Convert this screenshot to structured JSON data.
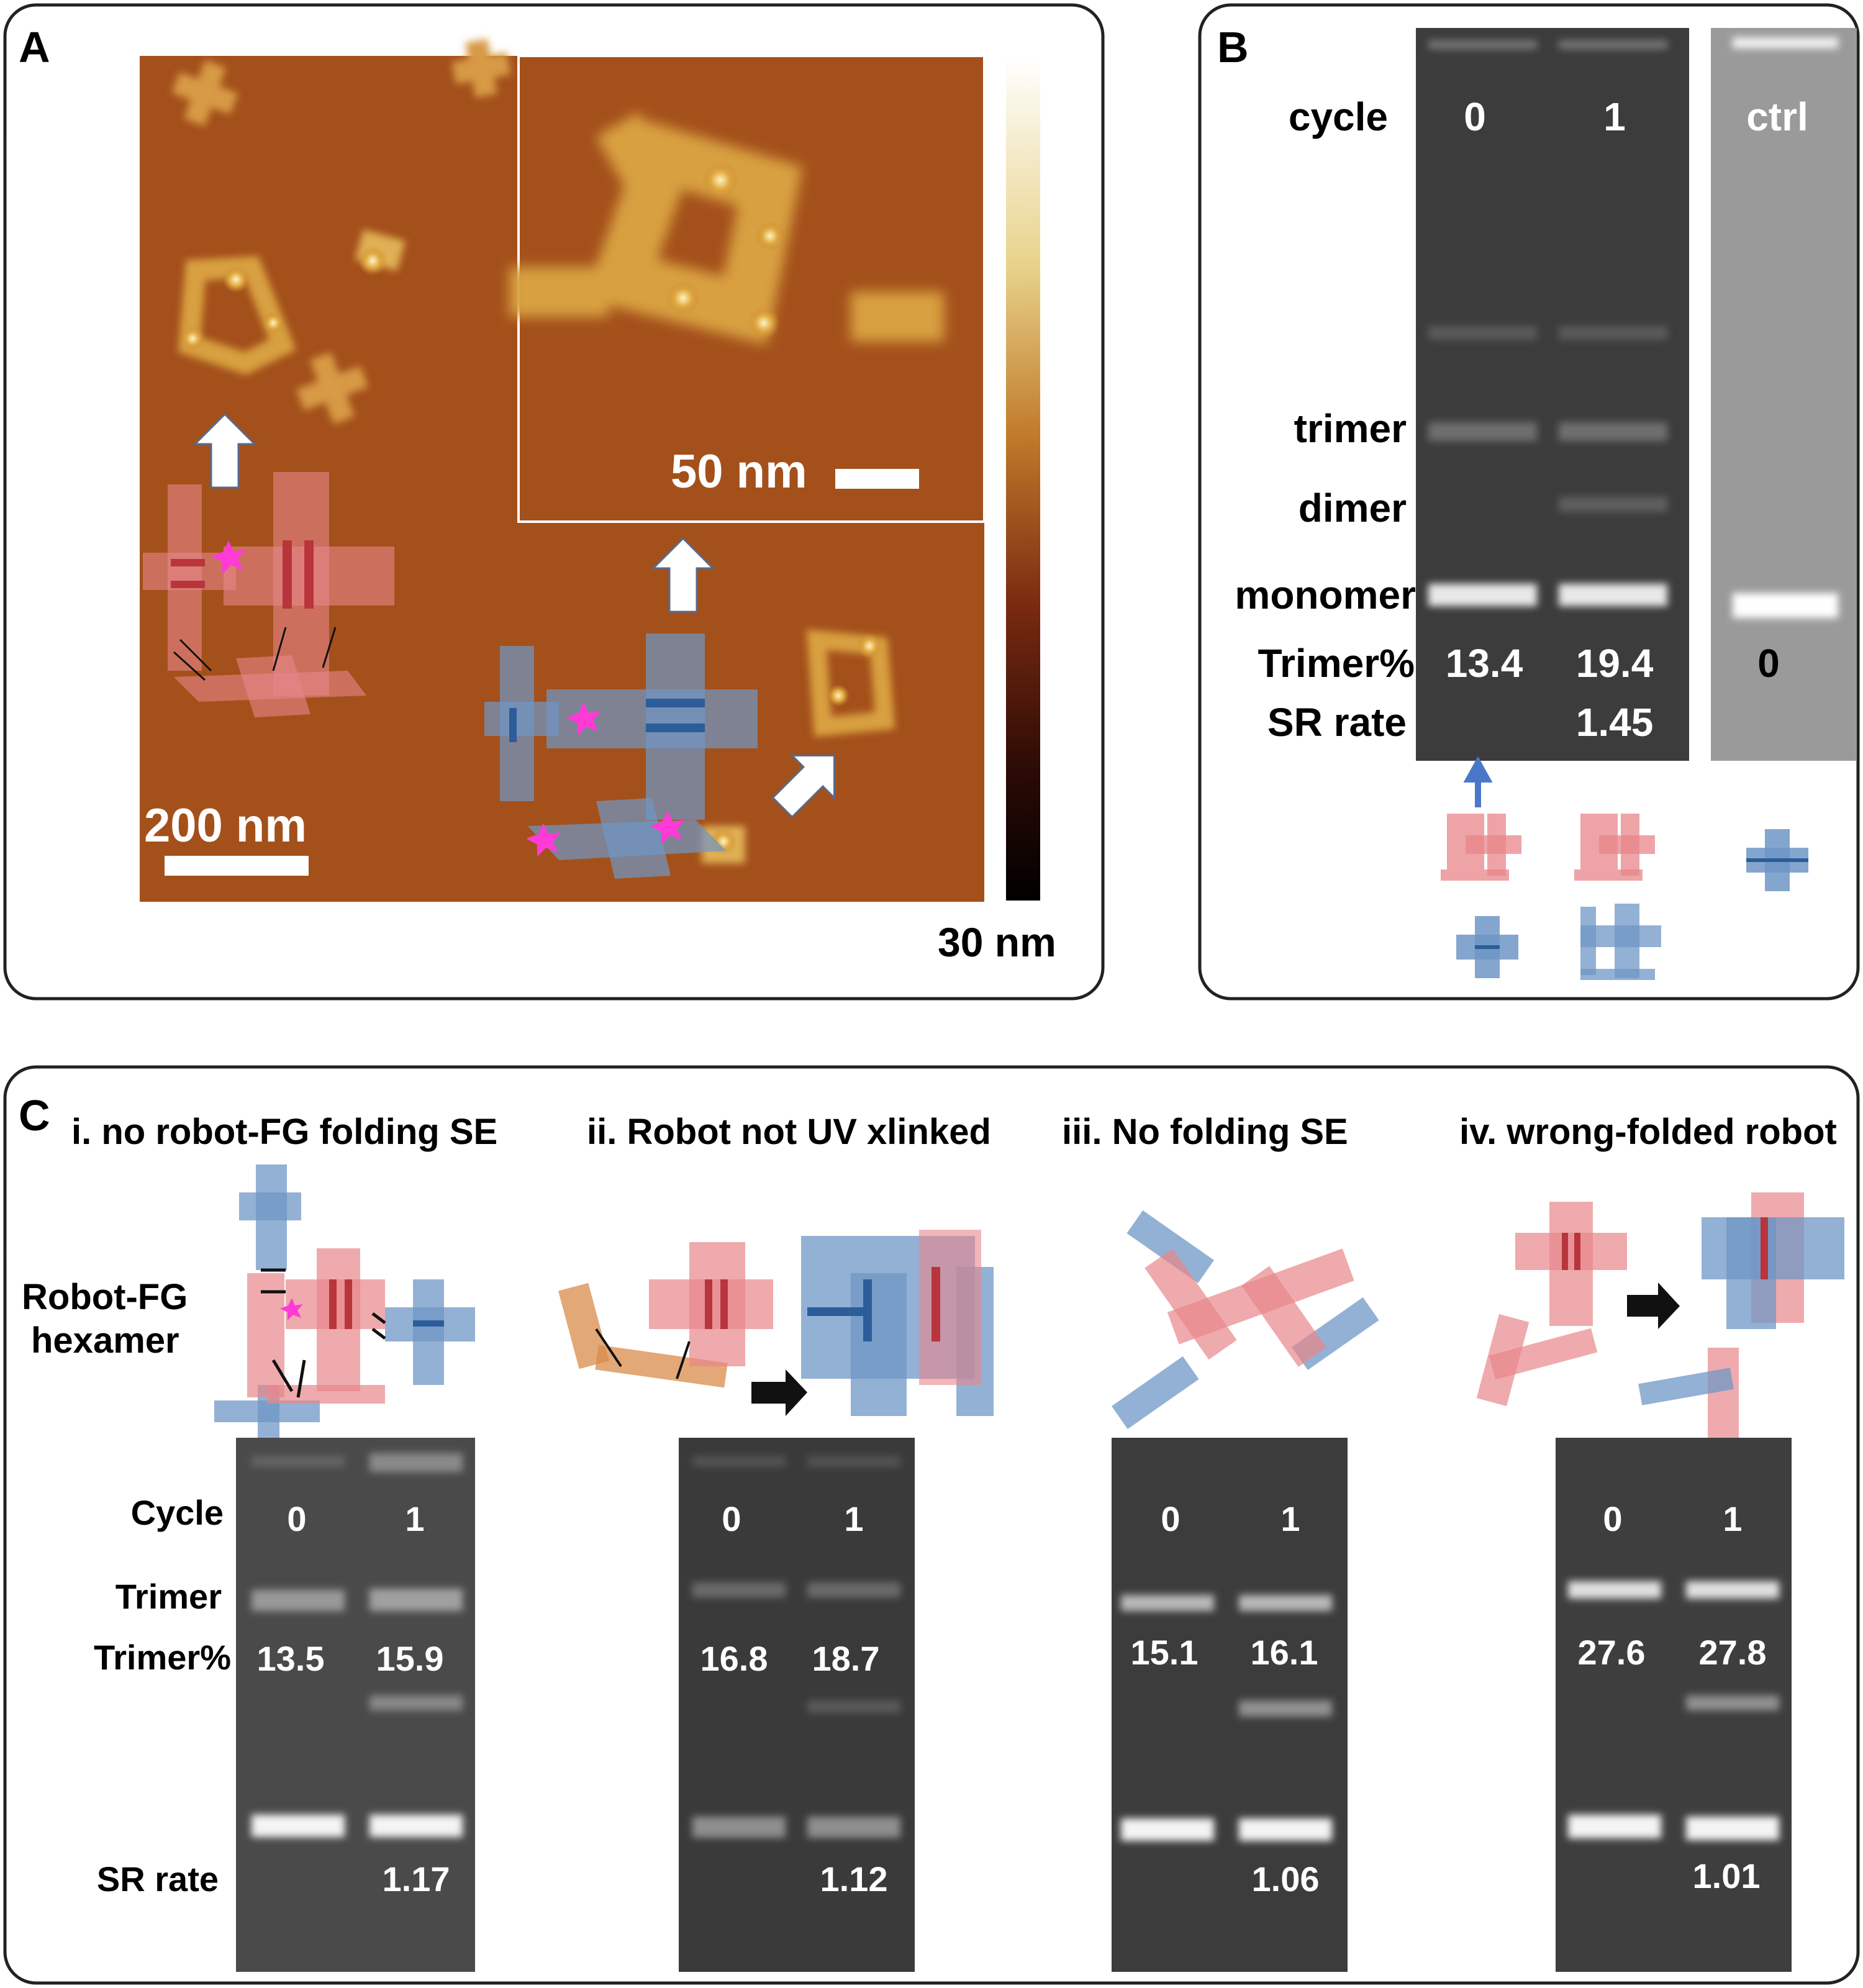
{
  "panelA": {
    "letter": "A",
    "scale_inset": "50 nm",
    "scale_main": "200 nm",
    "colorbar_label": "30 nm"
  },
  "panelB": {
    "letter": "B",
    "cycle_label": "cycle",
    "lane_labels": [
      "0",
      "1",
      "ctrl"
    ],
    "band_labels": [
      "trimer",
      "dimer",
      "monomer"
    ],
    "trimer_pct_label": "Trimer%",
    "trimer_pct_values": [
      "13.4",
      "19.4",
      "0"
    ],
    "sr_label": "SR rate",
    "sr_value": "1.45"
  },
  "panelC": {
    "letter": "C",
    "robot_label_1": "Robot-FG",
    "robot_label_2": "hexamer",
    "row_cycle": "Cycle",
    "row_trimer": "Trimer",
    "row_trimer_pct": "Trimer%",
    "row_sr": "SR rate",
    "subpanels": [
      {
        "title": "i.  no robot-FG folding SE",
        "lanes": [
          "0",
          "1"
        ],
        "trimer_pct": [
          "13.5",
          "15.9"
        ],
        "sr": "1.17"
      },
      {
        "title": "ii. Robot not UV xlinked",
        "lanes": [
          "0",
          "1"
        ],
        "trimer_pct": [
          "16.8",
          "18.7"
        ],
        "sr": "1.12"
      },
      {
        "title": "iii. No folding SE",
        "lanes": [
          "0",
          "1"
        ],
        "trimer_pct": [
          "15.1",
          "16.1"
        ],
        "sr": "1.06"
      },
      {
        "title": "iv. wrong-folded  robot",
        "lanes": [
          "0",
          "1"
        ],
        "trimer_pct": [
          "27.6",
          "27.8"
        ],
        "sr": "1.01"
      }
    ]
  },
  "colors": {
    "afm_bg": "#a4501b",
    "pink_tile": "#e8868a",
    "blue_tile": "#6f97c6",
    "orange_tile": "#d98b4a",
    "magenta_star": "#ff3ad6",
    "gel_dark": "#3c3c3c",
    "gel_ctrl": "#9a9a9a"
  }
}
